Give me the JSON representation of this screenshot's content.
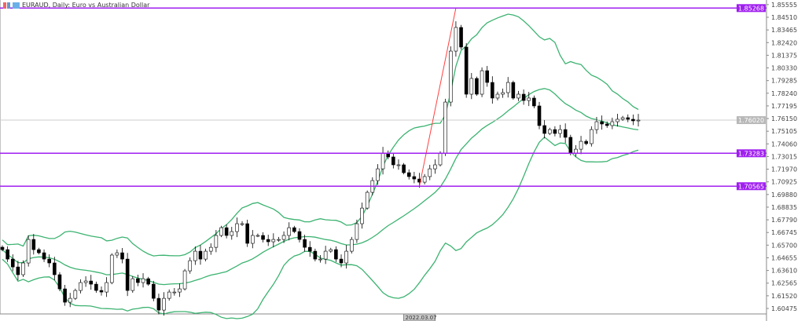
{
  "window": {
    "title": "EURAUD, Daily:  Euro vs Australian Dollar"
  },
  "chart_data": {
    "type": "candlestick",
    "title": "EURAUD, Daily:  Euro vs Australian Dollar",
    "indicator": "Bollinger Bands",
    "closes": [
      1.6533,
      1.6455,
      1.639,
      1.6326,
      1.6423,
      1.6617,
      1.6533,
      1.6507,
      1.6455,
      1.6423,
      1.6326,
      1.6209,
      1.6099,
      1.6131,
      1.6196,
      1.6261,
      1.6274,
      1.6248,
      1.6196,
      1.6183,
      1.6261,
      1.6488,
      1.6507,
      1.6455,
      1.6196,
      1.6293,
      1.6261,
      1.6293,
      1.6248,
      1.6131,
      1.6034,
      1.6131,
      1.6183,
      1.6183,
      1.6209,
      1.6358,
      1.6442,
      1.652,
      1.6455,
      1.652,
      1.6552,
      1.665,
      1.6714,
      1.665,
      1.6682,
      1.6747,
      1.6747,
      1.6585,
      1.665,
      1.665,
      1.6617,
      1.6598,
      1.6617,
      1.6617,
      1.665,
      1.6714,
      1.6682,
      1.6617,
      1.6552,
      1.652,
      1.6455,
      1.6455,
      1.652,
      1.6533,
      1.6455,
      1.6423,
      1.652,
      1.6617,
      1.6747,
      1.6876,
      1.7006,
      1.7103,
      1.72,
      1.733,
      1.7298,
      1.7233,
      1.7233,
      1.7168,
      1.7136,
      1.7116,
      1.709,
      1.7136,
      1.72,
      1.7233,
      1.733,
      1.7751,
      1.8172,
      1.8367,
      1.8205,
      1.7816,
      1.7946,
      1.7816,
      1.801,
      1.7913,
      1.7784,
      1.7816,
      1.7829,
      1.7913,
      1.7784,
      1.7816,
      1.7764,
      1.7784,
      1.7719,
      1.7557,
      1.7492,
      1.7524,
      1.7492,
      1.7524,
      1.746,
      1.733,
      1.7362,
      1.7427,
      1.7408,
      1.7524,
      1.7589,
      1.757,
      1.7557,
      1.7589,
      1.7609,
      1.7622,
      1.7609,
      1.7596,
      1.7602
    ],
    "yaxis_ticks": [
      "1.85555",
      "1.84510",
      "1.83465",
      "1.82420",
      "1.81375",
      "1.80330",
      "1.79285",
      "1.78240",
      "1.77195",
      "1.76150",
      "1.75105",
      "1.74060",
      "1.73015",
      "1.71970",
      "1.70925",
      "1.69880",
      "1.68835",
      "1.67790",
      "1.66745",
      "1.65700",
      "1.64655",
      "1.63610",
      "1.62565",
      "1.61520",
      "1.60475"
    ],
    "horizontal_levels": [
      {
        "label": "1.85268",
        "value": 1.85268
      },
      {
        "label": "1.73283",
        "value": 1.73283
      },
      {
        "label": "1.70565",
        "value": 1.70565
      }
    ],
    "current_price": {
      "label": "1.76020",
      "value": 1.7602
    },
    "trendline": {
      "from": 1.7056,
      "to": 1.8527
    },
    "time_label": "2022.03.07",
    "colors": {
      "levels": "#a020f0",
      "bands": "#3cb371",
      "trendline": "#ff4040",
      "bull": "#ffffff",
      "bear": "#000000"
    }
  }
}
